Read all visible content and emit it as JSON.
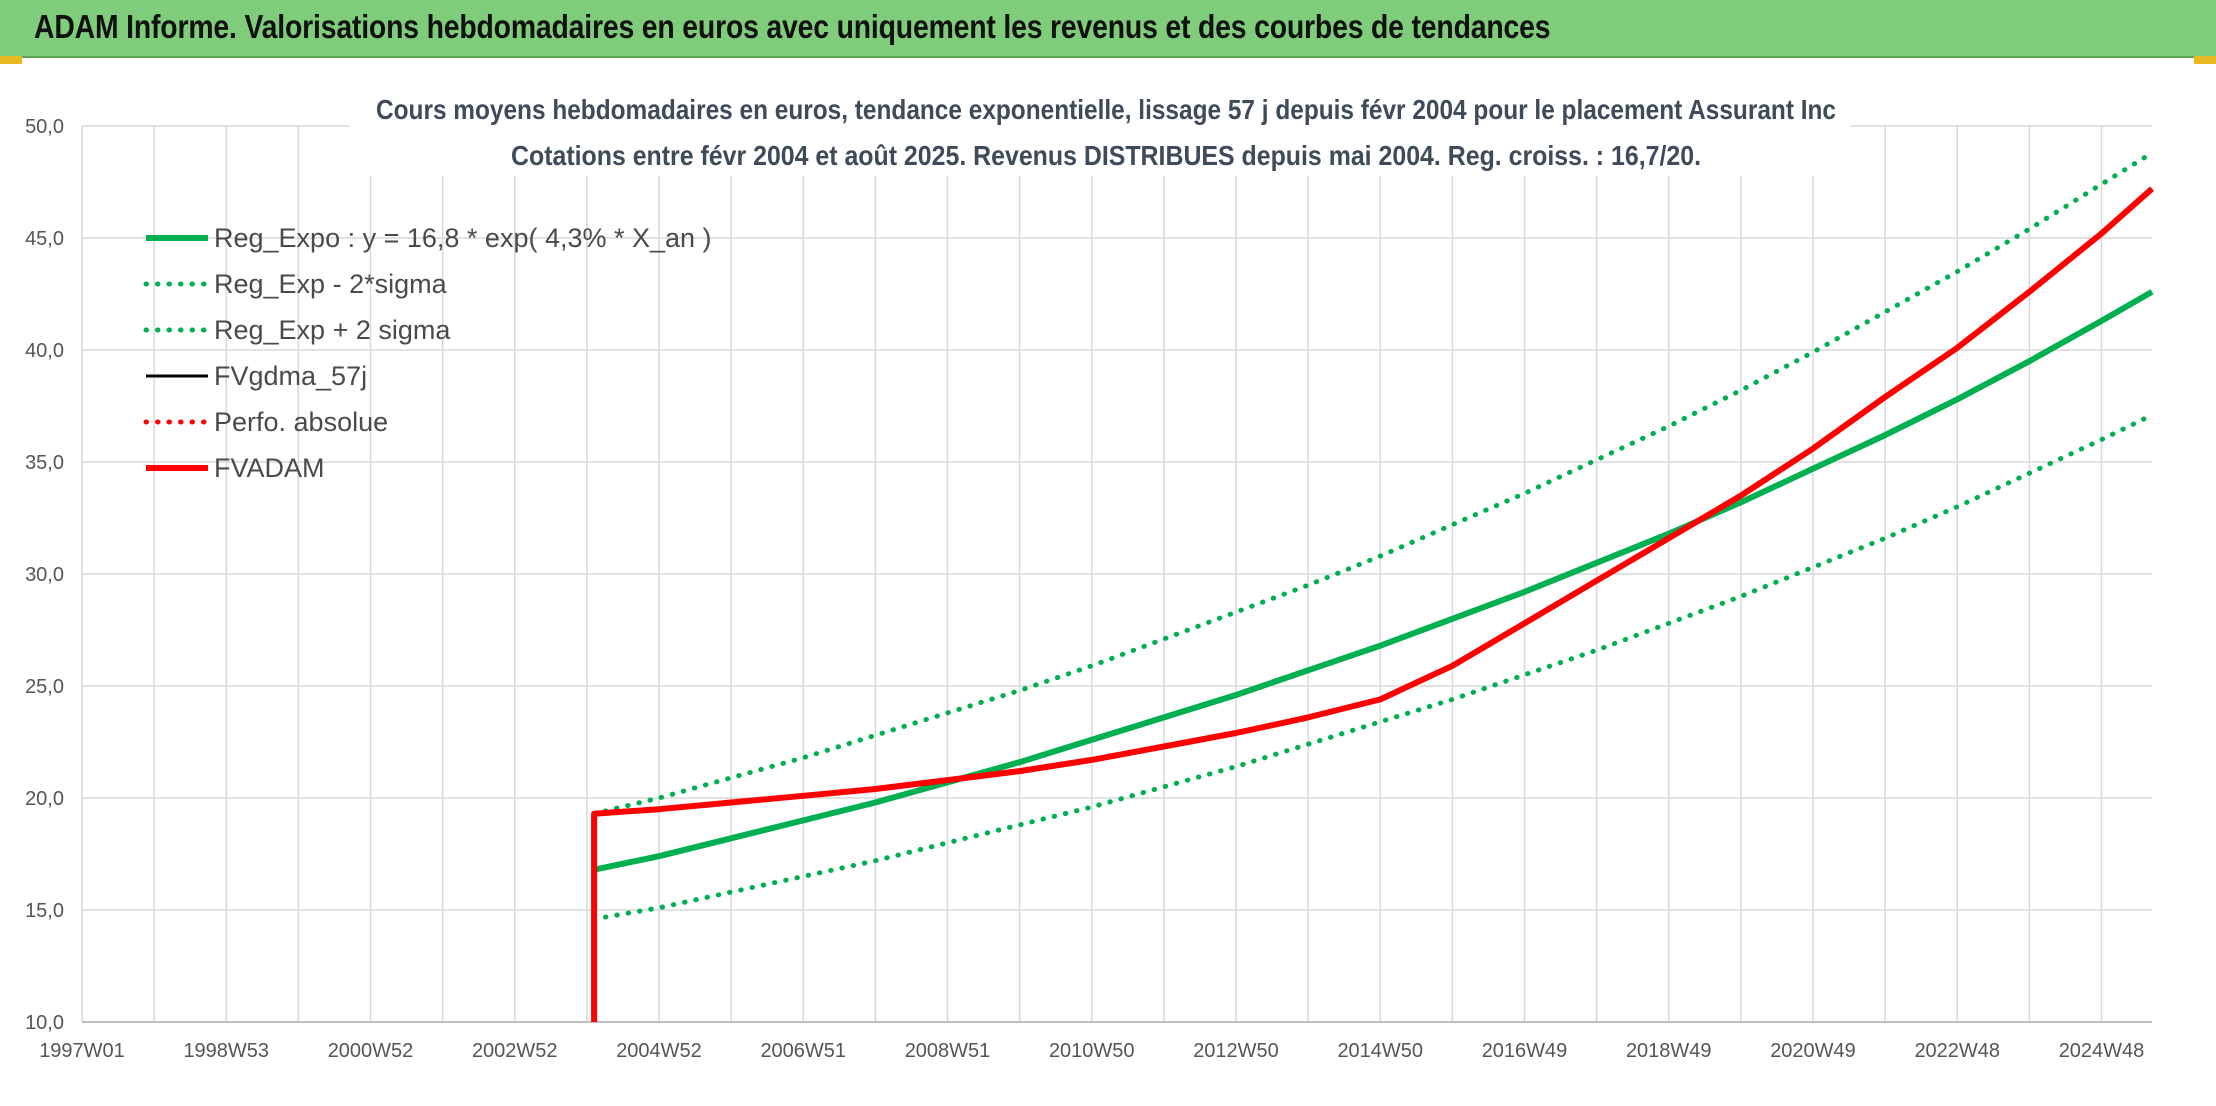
{
  "header": {
    "title": "ADAM Informe. Valorisations hebdomadaires en euros avec uniquement les revenus et des courbes de tendances"
  },
  "colors": {
    "header_bg": "#7fcc7a",
    "green_series": "#00b050",
    "dotted_green": "#00b050",
    "black_series": "#000000",
    "red_series": "#ff0000",
    "gridline": "#d9d9d9"
  },
  "chart_data": {
    "type": "line",
    "title": "Cours moyens hebdomadaires en euros, tendance exponentielle, lissage 57 j depuis févr 2004 pour le placement Assurant Inc",
    "subtitle": "Cotations entre févr 2004 et août 2025. Revenus DISTRIBUES depuis mai 2004. Reg. croiss. : 16,7/20.",
    "x_tick_labels": [
      "1997W01",
      "1998W53",
      "2000W52",
      "2002W52",
      "2004W52",
      "2006W51",
      "2008W51",
      "2010W50",
      "2012W50",
      "2014W50",
      "2016W49",
      "2018W49",
      "2020W49",
      "2022W48",
      "2024W48"
    ],
    "x_tick_years": [
      1997.0,
      1999.0,
      2001.0,
      2003.0,
      2005.0,
      2007.0,
      2009.0,
      2011.0,
      2013.0,
      2015.0,
      2017.0,
      2019.0,
      2021.0,
      2023.0,
      2025.0
    ],
    "xlim": [
      1997.0,
      2025.7
    ],
    "ylim": [
      10,
      50
    ],
    "y_ticks": [
      10,
      15,
      20,
      25,
      30,
      35,
      40,
      45,
      50
    ],
    "y_tick_labels": [
      "10,0",
      "15,0",
      "20,0",
      "25,0",
      "30,0",
      "35,0",
      "40,0",
      "45,0",
      "50,0"
    ],
    "grid": true,
    "legend_position": "top-left",
    "series": [
      {
        "name": "Reg_Expo : y = 16,8 * exp( 4,3% *  X_an )",
        "style": "solid-thick",
        "color": "#00b050",
        "x": [
          2004.1,
          2005,
          2006,
          2007,
          2008,
          2009,
          2010,
          2011,
          2012,
          2013,
          2014,
          2015,
          2016,
          2017,
          2018,
          2019,
          2020,
          2021,
          2022,
          2023,
          2024,
          2025,
          2025.7
        ],
        "y": [
          16.8,
          17.4,
          18.2,
          19.0,
          19.8,
          20.7,
          21.6,
          22.6,
          23.6,
          24.6,
          25.7,
          26.8,
          28.0,
          29.2,
          30.5,
          31.8,
          33.2,
          34.7,
          36.2,
          37.8,
          39.5,
          41.3,
          42.6
        ]
      },
      {
        "name": "Reg_Exp - 2*sigma",
        "style": "dotted",
        "color": "#00b050",
        "x": [
          2004.1,
          2005,
          2006,
          2007,
          2008,
          2009,
          2010,
          2011,
          2012,
          2013,
          2014,
          2015,
          2016,
          2017,
          2018,
          2019,
          2020,
          2021,
          2022,
          2023,
          2024,
          2025,
          2025.7
        ],
        "y": [
          14.6,
          15.1,
          15.8,
          16.5,
          17.2,
          18.0,
          18.8,
          19.6,
          20.5,
          21.4,
          22.4,
          23.4,
          24.4,
          25.5,
          26.6,
          27.8,
          29.0,
          30.3,
          31.6,
          33.0,
          34.5,
          36.0,
          37.1
        ]
      },
      {
        "name": "Reg_Exp + 2 sigma",
        "style": "dotted",
        "color": "#00b050",
        "x": [
          2004.1,
          2005,
          2006,
          2007,
          2008,
          2009,
          2010,
          2011,
          2012,
          2013,
          2014,
          2015,
          2016,
          2017,
          2018,
          2019,
          2020,
          2021,
          2022,
          2023,
          2024,
          2025,
          2025.7
        ],
        "y": [
          19.3,
          20.0,
          20.9,
          21.8,
          22.8,
          23.8,
          24.8,
          25.9,
          27.1,
          28.3,
          29.5,
          30.8,
          32.2,
          33.6,
          35.1,
          36.6,
          38.2,
          39.9,
          41.7,
          43.5,
          45.4,
          47.4,
          48.8
        ]
      },
      {
        "name": "FVgdma_57j",
        "style": "solid",
        "color": "#000000",
        "x": [
          2004.1,
          2005,
          2006,
          2007,
          2008,
          2009,
          2010,
          2011,
          2012,
          2013,
          2014,
          2015,
          2016,
          2017,
          2018,
          2019,
          2020,
          2021,
          2022,
          2023,
          2024,
          2025,
          2025.7
        ],
        "y": [
          19.3,
          19.5,
          19.8,
          20.1,
          20.4,
          20.8,
          21.2,
          21.7,
          22.3,
          22.9,
          23.6,
          24.4,
          25.9,
          27.8,
          29.7,
          31.6,
          33.5,
          35.6,
          37.9,
          40.1,
          42.6,
          45.2,
          47.2
        ]
      },
      {
        "name": "Perfo. absolue",
        "style": "dotted",
        "color": "#ff0000",
        "x": [
          2004.1,
          2005,
          2006,
          2007,
          2008,
          2009,
          2010,
          2011,
          2012,
          2013,
          2014,
          2015,
          2016,
          2017,
          2018,
          2019,
          2020,
          2021,
          2022,
          2023,
          2024,
          2025,
          2025.7
        ],
        "y": [
          19.3,
          19.5,
          19.8,
          20.1,
          20.4,
          20.8,
          21.2,
          21.7,
          22.3,
          22.9,
          23.6,
          24.4,
          25.9,
          27.8,
          29.7,
          31.6,
          33.5,
          35.6,
          37.9,
          40.1,
          42.6,
          45.2,
          47.2
        ]
      },
      {
        "name": "FVADAM",
        "style": "solid-thick",
        "color": "#ff0000",
        "x": [
          2004.1,
          2004.1,
          2005,
          2006,
          2007,
          2008,
          2009,
          2010,
          2011,
          2012,
          2013,
          2014,
          2015,
          2016,
          2017,
          2018,
          2019,
          2020,
          2021,
          2022,
          2023,
          2024,
          2025,
          2025.7
        ],
        "y": [
          10.0,
          19.3,
          19.5,
          19.8,
          20.1,
          20.4,
          20.8,
          21.2,
          21.7,
          22.3,
          22.9,
          23.6,
          24.4,
          25.9,
          27.8,
          29.7,
          31.6,
          33.5,
          35.6,
          37.9,
          40.1,
          42.6,
          45.2,
          47.2
        ]
      }
    ]
  }
}
